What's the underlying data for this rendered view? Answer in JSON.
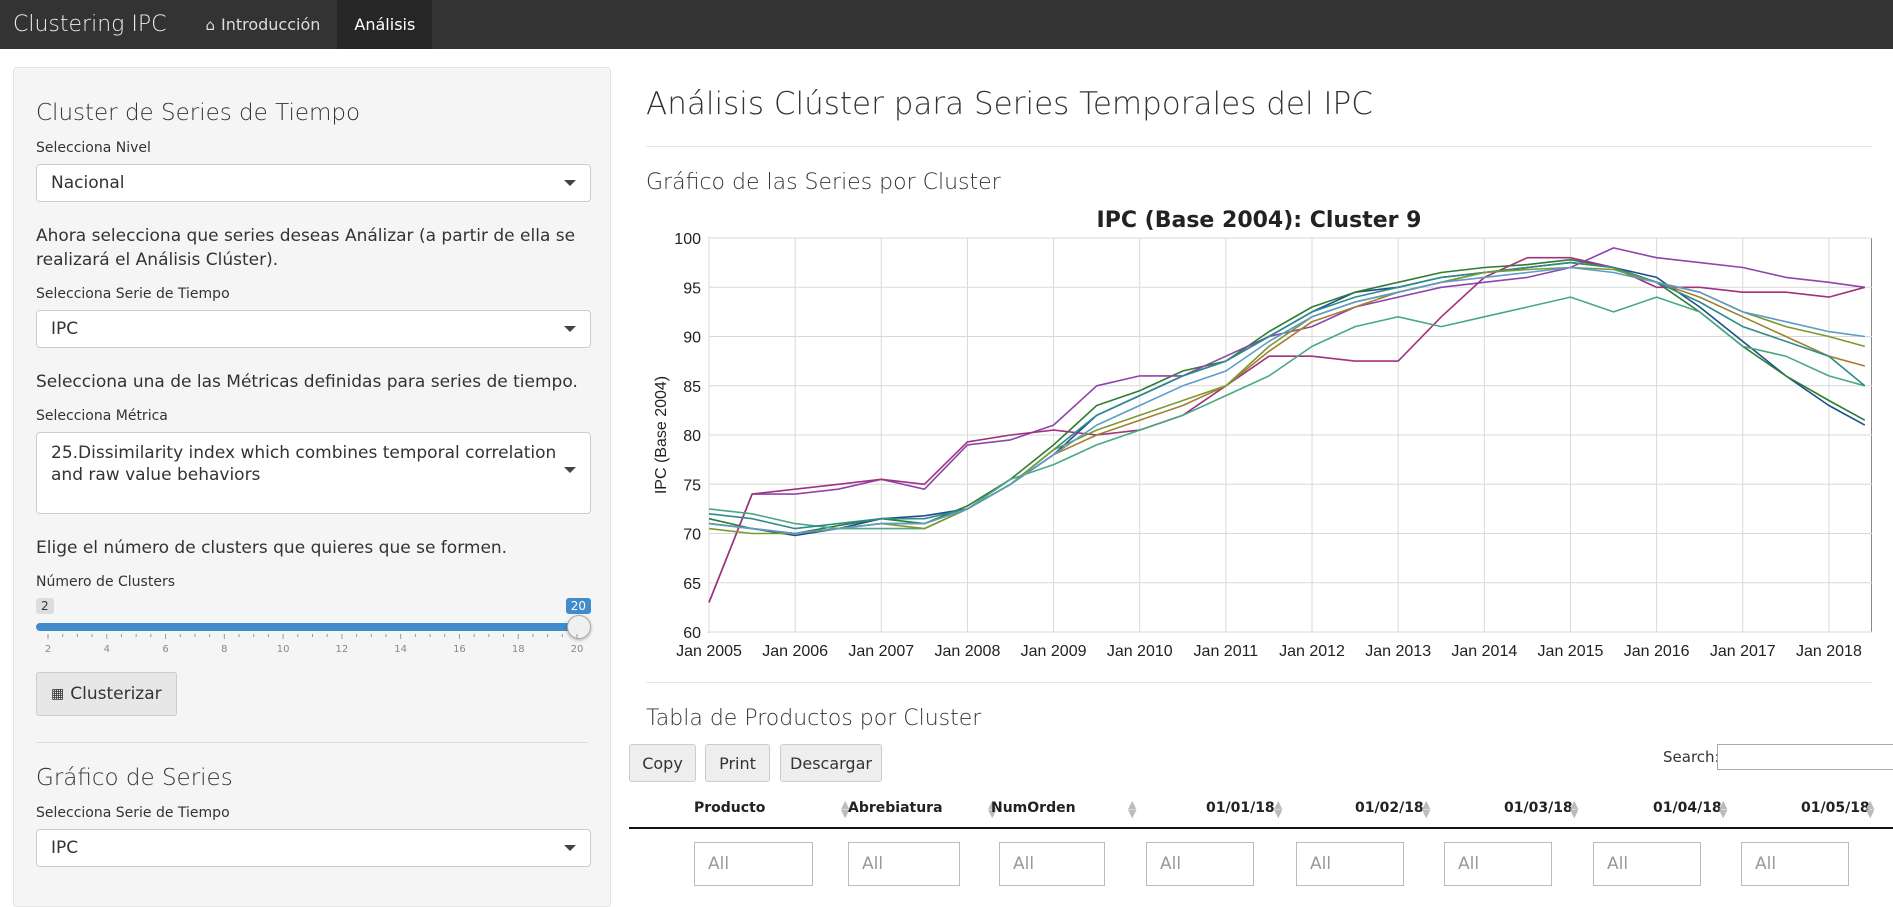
{
  "navbar": {
    "brand": "Clustering IPC",
    "tabs": [
      {
        "label": "Introducción",
        "icon": "home-icon",
        "active": false
      },
      {
        "label": "Análisis",
        "active": true
      }
    ]
  },
  "sidebar": {
    "cluster_title": "Cluster de Series de Tiempo",
    "nivel_label": "Selecciona Nivel",
    "nivel_value": "Nacional",
    "series_instruction": "Ahora selecciona que series deseas Análizar (a partir de ella se realizará el Análisis Clúster).",
    "serie_label": "Selecciona Serie de Tiempo",
    "serie_value": "IPC",
    "metric_instruction": "Selecciona una de las Métricas definidas para series de tiempo.",
    "metric_label": "Selecciona Métrica",
    "metric_value": "25.Dissimilarity index which combines temporal correlation and raw value behaviors",
    "clusters_instruction": "Elige el número de clusters que quieres que se formen.",
    "clusters_label": "Número de Clusters",
    "slider": {
      "min": "2",
      "max": "20",
      "value": "20",
      "ticks": [
        "2",
        "4",
        "6",
        "8",
        "10",
        "12",
        "14",
        "16",
        "18",
        "20"
      ]
    },
    "cluster_button": "Clusterizar",
    "graph_title": "Gráfico de Series",
    "graph_serie_label": "Selecciona Serie de Tiempo",
    "graph_serie_value": "IPC"
  },
  "main": {
    "title": "Análisis Clúster para Series Temporales del IPC",
    "chart_section_title": "Gráfico de las Series por Cluster",
    "table_section_title": "Tabla de Productos por Cluster",
    "buttons": {
      "copy": "Copy",
      "print": "Print",
      "download": "Descargar"
    },
    "search_label": "Search:",
    "table_headers": [
      "Producto",
      "Abrebiatura",
      "NumOrden",
      "01/01/18",
      "01/02/18",
      "01/03/18",
      "01/04/18",
      "01/05/18"
    ],
    "filter_placeholder": "All"
  },
  "chart_data": {
    "type": "line",
    "title": "IPC (Base 2004): Cluster 9",
    "ylabel": "IPC (Base 2004)",
    "xlabel": "",
    "ylim": [
      60,
      100
    ],
    "yticks": [
      "60",
      "65",
      "70",
      "75",
      "80",
      "85",
      "90",
      "95",
      "100"
    ],
    "x_tick_labels": [
      "Jan 2005",
      "Jan 2006",
      "Jan 2007",
      "Jan 2008",
      "Jan 2009",
      "Jan 2010",
      "Jan 2011",
      "Jan 2012",
      "Jan 2013",
      "Jan 2014",
      "Jan 2015",
      "Jan 2016",
      "Jan 2017",
      "Jan 2018"
    ],
    "grid": true,
    "x_dates": [
      "2005-01",
      "2005-07",
      "2006-01",
      "2006-07",
      "2007-01",
      "2007-07",
      "2008-01",
      "2008-07",
      "2009-01",
      "2009-07",
      "2010-01",
      "2010-07",
      "2011-01",
      "2011-07",
      "2012-01",
      "2012-07",
      "2013-01",
      "2013-07",
      "2014-01",
      "2014-07",
      "2015-01",
      "2015-07",
      "2016-01",
      "2016-07",
      "2017-01",
      "2017-07",
      "2018-01",
      "2018-06"
    ],
    "series": [
      {
        "color": "#1f4e8c",
        "values": [
          71,
          70.5,
          69.8,
          70.5,
          71.5,
          71.8,
          72.5,
          75,
          78,
          82,
          84,
          86,
          87.5,
          90,
          92.5,
          94.5,
          95,
          96,
          96.5,
          97,
          97.5,
          97,
          96,
          93,
          89.5,
          86,
          83,
          81
        ]
      },
      {
        "color": "#2e7d32",
        "values": [
          71.5,
          70.5,
          70,
          70.8,
          71.5,
          71,
          72.8,
          75.5,
          79,
          83,
          84.5,
          86.5,
          87.5,
          90.5,
          93,
          94.5,
          95.5,
          96.5,
          97,
          97.3,
          97.8,
          97,
          95.5,
          92.5,
          89,
          86,
          83.5,
          81.5
        ]
      },
      {
        "color": "#8e44ad",
        "values": [
          63,
          74,
          74,
          74.5,
          75.5,
          74.5,
          79,
          79.5,
          81,
          85,
          86,
          86,
          88,
          90,
          91,
          93,
          94,
          95,
          95.5,
          96,
          97,
          99,
          98,
          97.5,
          97,
          96,
          95.5,
          95
        ]
      },
      {
        "color": "#a0327e",
        "values": [
          63,
          74,
          74.5,
          75,
          75.5,
          75,
          79.3,
          80,
          80.5,
          80,
          80.5,
          82,
          85,
          88,
          88,
          87.5,
          87.5,
          92,
          96,
          98,
          98,
          97,
          95,
          95,
          94.5,
          94.5,
          94,
          95
        ]
      },
      {
        "color": "#4aa882",
        "values": [
          72.5,
          72,
          71,
          70.5,
          70.5,
          70.5,
          72.5,
          75.5,
          77,
          79,
          80.5,
          82,
          84,
          86,
          89,
          91,
          92,
          91,
          92,
          93,
          94,
          92.5,
          94,
          92.5,
          89,
          88,
          86,
          85
        ]
      },
      {
        "color": "#a08030",
        "values": [
          71,
          70.5,
          70,
          70.5,
          71,
          71,
          72.5,
          75,
          78,
          80,
          81.5,
          83,
          85,
          88.5,
          91.5,
          93,
          94.5,
          95.5,
          96.5,
          97,
          97.5,
          97,
          95.5,
          94,
          92,
          90,
          88,
          87
        ]
      },
      {
        "color": "#2e8b8b",
        "values": [
          72,
          71.5,
          70.5,
          71,
          71.5,
          71.5,
          72.5,
          75,
          78.5,
          82,
          84,
          86,
          87.5,
          90,
          92.5,
          94,
          95,
          96,
          96.5,
          97,
          97.5,
          97,
          95.5,
          93.5,
          91,
          89.5,
          88,
          85
        ]
      },
      {
        "color": "#7a9a30",
        "values": [
          70.5,
          70,
          70,
          70.5,
          71,
          70.5,
          72.5,
          75,
          78.5,
          80.5,
          82,
          83.5,
          85,
          89,
          92,
          93.5,
          94.5,
          95.5,
          96.5,
          96.8,
          97,
          96.8,
          95.5,
          94.5,
          92.5,
          91,
          90,
          89
        ]
      },
      {
        "color": "#5d9cc8",
        "values": [
          71,
          70.5,
          70,
          70.5,
          71,
          71,
          72.5,
          75,
          78,
          81,
          83,
          85,
          86.5,
          89.5,
          92,
          93.5,
          94.5,
          95.5,
          96,
          96.5,
          97,
          96.5,
          95.5,
          94.5,
          92.5,
          91.5,
          90.5,
          90
        ]
      }
    ]
  }
}
